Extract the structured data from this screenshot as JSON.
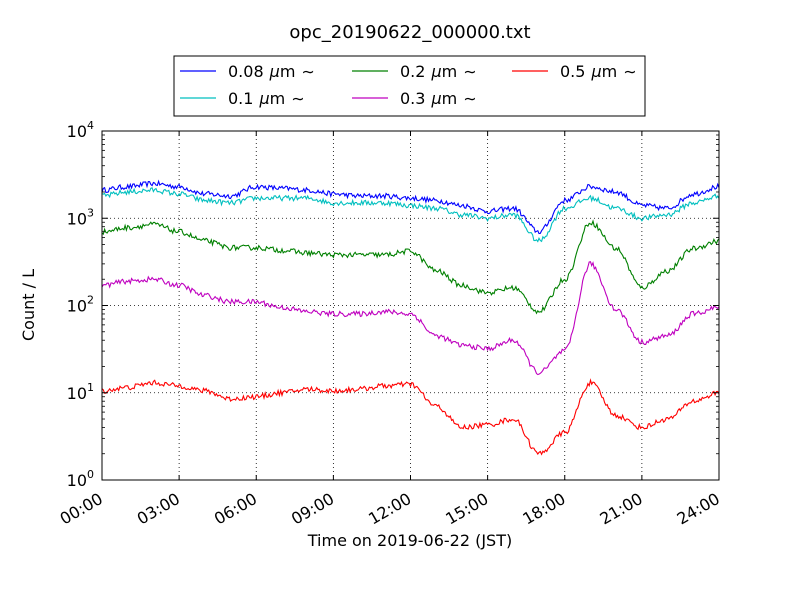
{
  "chart_data": {
    "type": "line",
    "title": "opc_20190622_000000.txt",
    "xlabel": "Time on 2019-06-22 (JST)",
    "ylabel": "Count / L",
    "yscale": "log",
    "ylim": [
      1,
      10000
    ],
    "xlim": [
      0,
      24
    ],
    "x_ticks": [
      {
        "value": 0,
        "label": "00:00"
      },
      {
        "value": 3,
        "label": "03:00"
      },
      {
        "value": 6,
        "label": "06:00"
      },
      {
        "value": 9,
        "label": "09:00"
      },
      {
        "value": 12,
        "label": "12:00"
      },
      {
        "value": 15,
        "label": "15:00"
      },
      {
        "value": 18,
        "label": "18:00"
      },
      {
        "value": 21,
        "label": "21:00"
      },
      {
        "value": 24,
        "label": "24:00"
      }
    ],
    "y_ticks": [
      {
        "value": 1,
        "base": "10",
        "exp": "0"
      },
      {
        "value": 10,
        "base": "10",
        "exp": "1"
      },
      {
        "value": 100,
        "base": "10",
        "exp": "2"
      },
      {
        "value": 1000,
        "base": "10",
        "exp": "3"
      },
      {
        "value": 10000,
        "base": "10",
        "exp": "4"
      }
    ],
    "grid": true,
    "legend_position": "top-center, above plot",
    "x": [
      0,
      1,
      2,
      3,
      4,
      5,
      6,
      7,
      8,
      9,
      10,
      11,
      12,
      13,
      14,
      15,
      16,
      17,
      18,
      19,
      20,
      21,
      22,
      23,
      24
    ],
    "series": [
      {
        "name": "0.08",
        "color": "#0000ff",
        "values": [
          2100,
          2300,
          2500,
          2300,
          1900,
          1800,
          2300,
          2200,
          2100,
          1900,
          1800,
          1800,
          1700,
          1600,
          1400,
          1200,
          1300,
          700,
          1600,
          2300,
          2000,
          1400,
          1300,
          1900,
          2300
        ]
      },
      {
        "name": "0.1",
        "color": "#00bfbf",
        "values": [
          1800,
          2000,
          2100,
          1900,
          1600,
          1500,
          1700,
          1700,
          1700,
          1500,
          1500,
          1500,
          1400,
          1300,
          1100,
          1000,
          1100,
          550,
          1300,
          1700,
          1300,
          1000,
          1100,
          1500,
          1800
        ]
      },
      {
        "name": "0.2",
        "color": "#008000",
        "values": [
          700,
          780,
          850,
          700,
          550,
          460,
          460,
          430,
          400,
          380,
          380,
          380,
          420,
          250,
          170,
          140,
          160,
          85,
          200,
          900,
          450,
          160,
          250,
          450,
          550
        ]
      },
      {
        "name": "0.3",
        "color": "#bf00bf",
        "values": [
          170,
          190,
          200,
          170,
          130,
          110,
          110,
          95,
          85,
          80,
          80,
          85,
          80,
          45,
          35,
          32,
          40,
          17,
          30,
          300,
          90,
          38,
          45,
          80,
          95
        ]
      },
      {
        "name": "0.5",
        "color": "#ff0000",
        "values": [
          10.5,
          11.5,
          13,
          12,
          10.5,
          8.5,
          9,
          10,
          11,
          10.5,
          11,
          12,
          12.5,
          7,
          4,
          4.3,
          5,
          2,
          3.5,
          13,
          5.5,
          4,
          5,
          8,
          10
        ]
      }
    ]
  },
  "legend": {
    "unit_symbol": "μm",
    "tilde": "∼"
  }
}
